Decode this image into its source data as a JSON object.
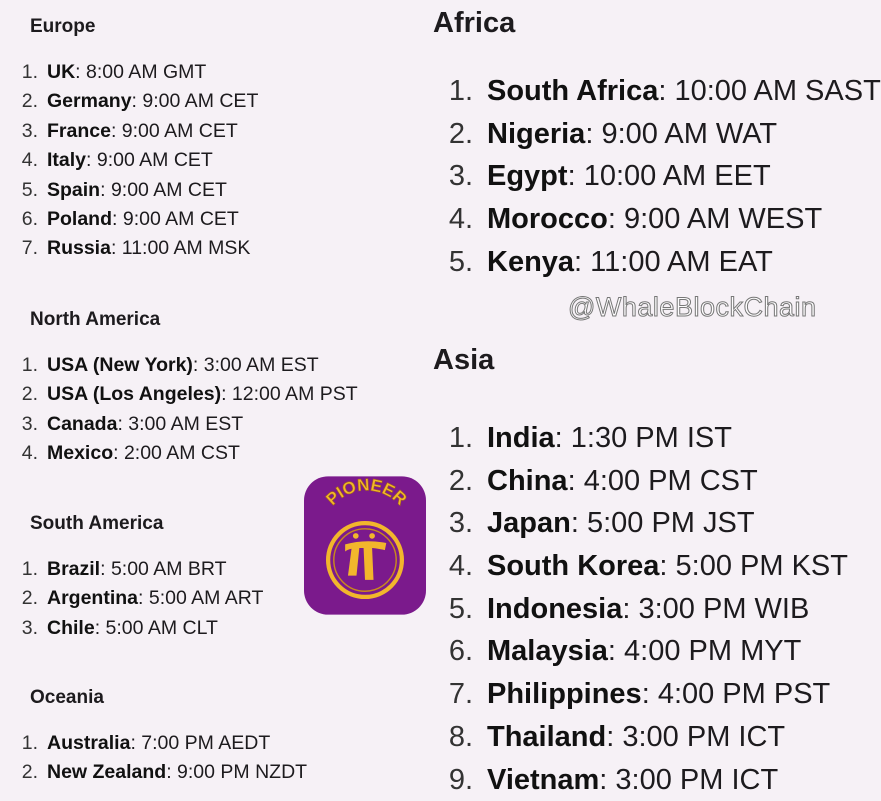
{
  "left": [
    {
      "heading": "Europe",
      "items": [
        {
          "n": "1.",
          "country": "UK",
          "time": "8:00 AM GMT"
        },
        {
          "n": "2.",
          "country": "Germany",
          "time": "9:00 AM CET"
        },
        {
          "n": "3.",
          "country": "France",
          "time": "9:00 AM CET"
        },
        {
          "n": "4.",
          "country": "Italy",
          "time": "9:00 AM CET"
        },
        {
          "n": "5.",
          "country": "Spain",
          "time": "9:00 AM CET"
        },
        {
          "n": "6.",
          "country": "Poland",
          "time": "9:00 AM CET"
        },
        {
          "n": "7.",
          "country": "Russia",
          "time": "11:00 AM MSK"
        }
      ]
    },
    {
      "heading": "North America",
      "items": [
        {
          "n": "1.",
          "country": "USA (New York)",
          "time": "3:00 AM EST"
        },
        {
          "n": "2.",
          "country": "USA (Los Angeles)",
          "time": "12:00 AM PST"
        },
        {
          "n": "3.",
          "country": "Canada",
          "time": "3:00 AM EST"
        },
        {
          "n": "4.",
          "country": "Mexico",
          "time": "2:00 AM CST"
        }
      ]
    },
    {
      "heading": "South America",
      "items": [
        {
          "n": "1.",
          "country": "Brazil",
          "time": "5:00 AM BRT"
        },
        {
          "n": "2.",
          "country": "Argentina",
          "time": "5:00 AM ART"
        },
        {
          "n": "3.",
          "country": "Chile",
          "time": "5:00 AM CLT"
        }
      ]
    },
    {
      "heading": "Oceania",
      "items": [
        {
          "n": "1.",
          "country": "Australia",
          "time": "7:00 PM AEDT"
        },
        {
          "n": "2.",
          "country": "New Zealand",
          "time": "9:00 PM NZDT"
        }
      ]
    }
  ],
  "right": [
    {
      "heading": "Africa",
      "items": [
        {
          "n": "1.",
          "country": "South Africa",
          "time": "10:00 AM SAST"
        },
        {
          "n": "2.",
          "country": "Nigeria",
          "time": "9:00 AM WAT"
        },
        {
          "n": "3.",
          "country": "Egypt",
          "time": "10:00 AM EET"
        },
        {
          "n": "4.",
          "country": "Morocco",
          "time": "9:00 AM WEST"
        },
        {
          "n": "5.",
          "country": "Kenya",
          "time": "11:00 AM EAT"
        }
      ]
    },
    {
      "heading": "Asia",
      "items": [
        {
          "n": "1.",
          "country": "India",
          "time": "1:30 PM IST"
        },
        {
          "n": "2.",
          "country": "China",
          "time": "4:00 PM CST"
        },
        {
          "n": "3.",
          "country": "Japan",
          "time": "5:00 PM JST"
        },
        {
          "n": "4.",
          "country": "South Korea",
          "time": "5:00 PM KST"
        },
        {
          "n": "5.",
          "country": "Indonesia",
          "time": "3:00 PM WIB"
        },
        {
          "n": "6.",
          "country": "Malaysia",
          "time": "4:00 PM MYT"
        },
        {
          "n": "7.",
          "country": "Philippines",
          "time": "4:00 PM PST"
        },
        {
          "n": "8.",
          "country": "Thailand",
          "time": "3:00 PM ICT"
        },
        {
          "n": "9.",
          "country": "Vietnam",
          "time": "3:00 PM ICT"
        }
      ]
    }
  ],
  "logo": {
    "text": "PIONEER",
    "colors": {
      "bg": "#7b1a8c",
      "gold": "#f2b62c"
    }
  },
  "watermark": "@WhaleBlockChain"
}
